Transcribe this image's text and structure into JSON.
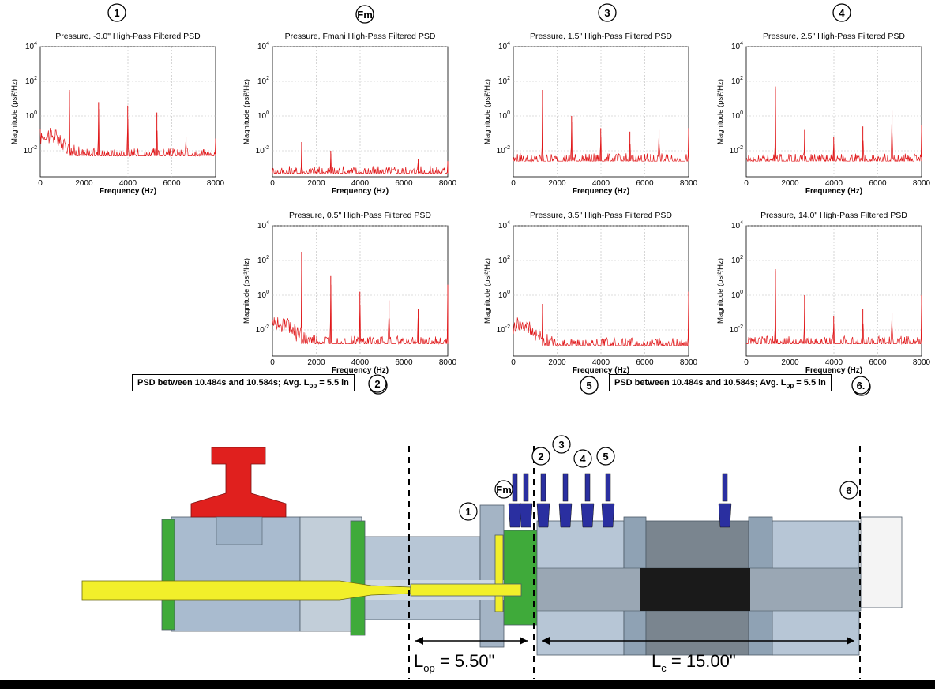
{
  "psd_plots": [
    {
      "title": "Pressure, -3.0\"   High-Pass Filtered PSD",
      "marker": "1",
      "peak_freqs_hz": [
        1330,
        2660,
        3990,
        5320,
        6650,
        8000
      ],
      "peak_exponents": [
        1.5,
        0.8,
        0.6,
        0.2,
        -1.2,
        -1.3
      ],
      "noise_floor_exponent": -2.3,
      "low_freq_hump": true
    },
    {
      "title": "Pressure, Fmani   High-Pass Filtered PSD",
      "marker": "Fm",
      "peak_freqs_hz": [
        1330,
        2660,
        6650,
        8000
      ],
      "peak_exponents": [
        -1.5,
        -2.0,
        -2.5,
        -2.6
      ],
      "noise_floor_exponent": -3.3,
      "low_freq_hump": false
    },
    {
      "title": "Pressure,  1.5\" High-Pass Filtered PSD",
      "marker": "3",
      "peak_freqs_hz": [
        1330,
        2660,
        3990,
        5320,
        6650,
        8000
      ],
      "peak_exponents": [
        1.5,
        0.0,
        -0.7,
        -0.9,
        -0.8,
        -0.7
      ],
      "noise_floor_exponent": -2.6,
      "low_freq_hump": false
    },
    {
      "title": "Pressure,  2.5\" High-Pass Filtered PSD",
      "marker": "4",
      "peak_freqs_hz": [
        1330,
        2660,
        3990,
        5320,
        6650,
        8000
      ],
      "peak_exponents": [
        1.7,
        -0.8,
        -1.2,
        -0.6,
        0.3,
        -0.5
      ],
      "noise_floor_exponent": -2.6,
      "low_freq_hump": false
    },
    {
      "title": "Pressure,  0.5\"  High-Pass Filtered PSD",
      "marker": "2",
      "peak_freqs_hz": [
        1330,
        2660,
        3990,
        5320,
        6650,
        8000
      ],
      "peak_exponents": [
        2.5,
        1.1,
        0.2,
        -0.3,
        -0.8,
        0.6
      ],
      "noise_floor_exponent": -2.8,
      "low_freq_hump": true
    },
    {
      "title": "Pressure,  3.5\" High-Pass Filtered PSD",
      "marker": "5",
      "peak_freqs_hz": [
        1330,
        8000
      ],
      "peak_exponents": [
        -0.5,
        0.2
      ],
      "noise_floor_exponent": -2.9,
      "low_freq_hump": true
    },
    {
      "title": "Pressure, 14.0\" High-Pass Filtered PSD",
      "marker": "6",
      "peak_freqs_hz": [
        1330,
        2660,
        3990,
        5320,
        6650,
        8000
      ],
      "peak_exponents": [
        1.5,
        0.0,
        -1.2,
        -0.8,
        -1.0,
        0.0
      ],
      "noise_floor_exponent": -2.8,
      "low_freq_hump": false
    }
  ],
  "axes": {
    "x_label": "Frequency (Hz)",
    "y_label": "Magnitude (psi²/Hz)",
    "x_ticks": [
      "0",
      "2000",
      "4000",
      "6000",
      "8000"
    ],
    "y_tick_exponents": [
      "4",
      "2",
      "0",
      "-2"
    ],
    "y_tick_base": "10",
    "x_range_hz": [
      0,
      8000
    ],
    "y_range_exponent": [
      -3.5,
      4
    ],
    "grid": true,
    "line_color": "#e0191b"
  },
  "notes": {
    "left_prefix": "PSD between 10.484s and 10.584s; Avg. L",
    "left_sub": "op",
    "left_suffix": " = 5.5 in",
    "left_marker": "2",
    "right_prefix": "PSD between 10.484s and 10.584s; Avg. L",
    "right_sub": "op",
    "right_suffix": " = 5.5 in",
    "right_marker_left": "5",
    "right_marker_right": "6."
  },
  "diagram": {
    "sensor_labels": [
      "1",
      "Fm",
      "2",
      "3",
      "4",
      "5",
      "6"
    ],
    "dim_op": {
      "main": "L",
      "sub": "op",
      "value": " = 5.50\""
    },
    "dim_c": {
      "main": "L",
      "sub": "c",
      "value": " = 15.00\""
    },
    "colors": {
      "manifold": "#e0201e",
      "injector": "#f2ef2a",
      "sensors": "#2a2fa0",
      "green_rings": "#3faa3a",
      "body_steel": "#b7c6d6",
      "chamber_dark": "#1a1a1a"
    }
  }
}
